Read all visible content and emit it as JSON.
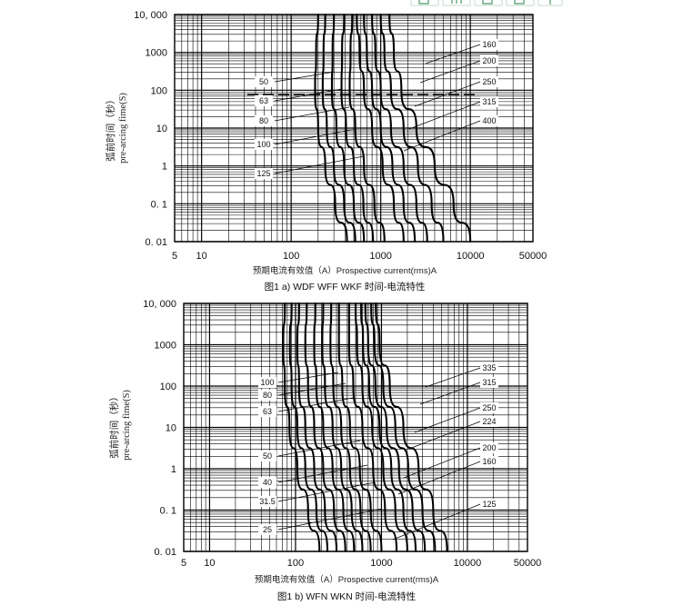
{
  "chart_data": [
    {
      "type": "line",
      "title": "图1 a) WDF WFF WKF 时间-电流特性",
      "xlabel": "预期电流有效值（A）Prospective current(rms)A",
      "ylabel_cn": "弧前时间（秒）",
      "ylabel_en": "pre-arcing fime(S)",
      "x_scale": "log",
      "y_scale": "log",
      "xlim": [
        5,
        50000
      ],
      "ylim": [
        0.01,
        10000
      ],
      "x_ticks": [
        "5",
        "10",
        "100",
        "1000",
        "10000",
        "50000"
      ],
      "y_ticks": [
        "10, 000",
        "1000",
        "100",
        "10",
        "1",
        "0. 1",
        "0. 01"
      ],
      "grid": true,
      "series": [
        {
          "name": "50",
          "points": [
            [
              200,
              10000
            ],
            [
              190,
              1000
            ],
            [
              185,
              100
            ],
            [
              200,
              10
            ],
            [
              240,
              1
            ],
            [
              310,
              0.1
            ],
            [
              420,
              0.01
            ]
          ]
        },
        {
          "name": "63",
          "points": [
            [
              240,
              10000
            ],
            [
              230,
              1000
            ],
            [
              225,
              100
            ],
            [
              250,
              10
            ],
            [
              300,
              1
            ],
            [
              390,
              0.1
            ],
            [
              520,
              0.01
            ]
          ]
        },
        {
          "name": "80",
          "points": [
            [
              300,
              10000
            ],
            [
              290,
              1000
            ],
            [
              285,
              100
            ],
            [
              320,
              10
            ],
            [
              390,
              1
            ],
            [
              500,
              0.1
            ],
            [
              650,
              0.01
            ]
          ]
        },
        {
          "name": "100",
          "points": [
            [
              390,
              10000
            ],
            [
              370,
              1000
            ],
            [
              365,
              100
            ],
            [
              410,
              10
            ],
            [
              500,
              1
            ],
            [
              640,
              0.1
            ],
            [
              820,
              0.01
            ]
          ]
        },
        {
          "name": "125",
          "points": [
            [
              480,
              10000
            ],
            [
              460,
              1000
            ],
            [
              450,
              100
            ],
            [
              520,
              10
            ],
            [
              650,
              1
            ],
            [
              850,
              0.1
            ],
            [
              1100,
              0.01
            ]
          ]
        },
        {
          "name": "160",
          "points": [
            [
              540,
              10000
            ],
            [
              580,
              1000
            ],
            [
              650,
              100
            ],
            [
              800,
              10
            ],
            [
              1050,
              1
            ],
            [
              1400,
              0.1
            ],
            [
              1800,
              0.01
            ]
          ]
        },
        {
          "name": "200",
          "points": [
            [
              650,
              10000
            ],
            [
              700,
              1000
            ],
            [
              800,
              100
            ],
            [
              1000,
              10
            ],
            [
              1350,
              1
            ],
            [
              1800,
              0.1
            ],
            [
              2400,
              0.01
            ]
          ]
        },
        {
          "name": "250",
          "points": [
            [
              800,
              10000
            ],
            [
              870,
              1000
            ],
            [
              1000,
              100
            ],
            [
              1300,
              10
            ],
            [
              1800,
              1
            ],
            [
              2500,
              0.1
            ],
            [
              3300,
              0.01
            ]
          ]
        },
        {
          "name": "315",
          "points": [
            [
              1000,
              10000
            ],
            [
              1100,
              1000
            ],
            [
              1300,
              100
            ],
            [
              1800,
              10
            ],
            [
              2600,
              1
            ],
            [
              3700,
              0.1
            ],
            [
              5000,
              0.01
            ]
          ]
        },
        {
          "name": "400",
          "points": [
            [
              1250,
              10000
            ],
            [
              1400,
              1000
            ],
            [
              1700,
              100
            ],
            [
              2500,
              10
            ],
            [
              4000,
              1
            ],
            [
              6500,
              0.1
            ],
            [
              10000,
              0.01
            ]
          ]
        }
      ],
      "rating_labels_left": [
        "50",
        "63",
        "80",
        "100",
        "125"
      ],
      "rating_labels_right": [
        "160",
        "200",
        "250",
        "315",
        "400"
      ]
    },
    {
      "type": "line",
      "title": "图1 b) WFN WKN 时间-电流特性",
      "xlabel": "预期电流有效值（A）Prospective current(rms)A",
      "ylabel_cn": "弧前时间（秒）",
      "ylabel_en": "pre-arcing fime(S)",
      "x_scale": "log",
      "y_scale": "log",
      "xlim": [
        5,
        50000
      ],
      "ylim": [
        0.01,
        10000
      ],
      "x_ticks": [
        "5",
        "10",
        "100",
        "1000",
        "10000",
        "50000"
      ],
      "y_ticks": [
        "10, 000",
        "1000",
        "100",
        "10",
        "1",
        "0. 1",
        "0. 01"
      ],
      "grid": true,
      "series": [
        {
          "name": "25",
          "points": [
            [
              75,
              10000
            ],
            [
              72,
              1000
            ],
            [
              75,
              100
            ],
            [
              85,
              10
            ],
            [
              105,
              1
            ],
            [
              140,
              0.1
            ],
            [
              190,
              0.01
            ]
          ]
        },
        {
          "name": "31.5",
          "points": [
            [
              90,
              10000
            ],
            [
              86,
              1000
            ],
            [
              90,
              100
            ],
            [
              105,
              10
            ],
            [
              130,
              1
            ],
            [
              175,
              0.1
            ],
            [
              235,
              0.01
            ]
          ]
        },
        {
          "name": "40",
          "points": [
            [
              110,
              10000
            ],
            [
              105,
              1000
            ],
            [
              110,
              100
            ],
            [
              130,
              10
            ],
            [
              165,
              1
            ],
            [
              220,
              0.1
            ],
            [
              300,
              0.01
            ]
          ]
        },
        {
          "name": "50",
          "points": [
            [
              135,
              10000
            ],
            [
              130,
              1000
            ],
            [
              140,
              100
            ],
            [
              165,
              10
            ],
            [
              210,
              1
            ],
            [
              280,
              0.1
            ],
            [
              380,
              0.01
            ]
          ]
        },
        {
          "name": "63",
          "points": [
            [
              170,
              10000
            ],
            [
              165,
              1000
            ],
            [
              175,
              100
            ],
            [
              210,
              10
            ],
            [
              270,
              1
            ],
            [
              360,
              0.1
            ],
            [
              480,
              0.01
            ]
          ]
        },
        {
          "name": "80",
          "points": [
            [
              210,
              10000
            ],
            [
              205,
              1000
            ],
            [
              220,
              100
            ],
            [
              270,
              10
            ],
            [
              340,
              1
            ],
            [
              450,
              0.1
            ],
            [
              600,
              0.01
            ]
          ]
        },
        {
          "name": "100",
          "points": [
            [
              260,
              10000
            ],
            [
              255,
              1000
            ],
            [
              275,
              100
            ],
            [
              340,
              10
            ],
            [
              430,
              1
            ],
            [
              570,
              0.1
            ],
            [
              750,
              0.01
            ]
          ]
        },
        {
          "name": "125",
          "points": [
            [
              320,
              10000
            ],
            [
              320,
              1000
            ],
            [
              350,
              100
            ],
            [
              430,
              10
            ],
            [
              560,
              1
            ],
            [
              750,
              0.1
            ],
            [
              1000,
              0.01
            ]
          ]
        },
        {
          "name": "160",
          "points": [
            [
              420,
              10000
            ],
            [
              420,
              1000
            ],
            [
              470,
              100
            ],
            [
              600,
              10
            ],
            [
              800,
              1
            ],
            [
              1100,
              0.1
            ],
            [
              1500,
              0.01
            ]
          ]
        },
        {
          "name": "200",
          "points": [
            [
              500,
              10000
            ],
            [
              520,
              1000
            ],
            [
              600,
              100
            ],
            [
              780,
              10
            ],
            [
              1050,
              1
            ],
            [
              1450,
              0.1
            ],
            [
              2000,
              0.01
            ]
          ]
        },
        {
          "name": "224",
          "points": [
            [
              580,
              10000
            ],
            [
              610,
              1000
            ],
            [
              720,
              100
            ],
            [
              950,
              10
            ],
            [
              1300,
              1
            ],
            [
              1800,
              0.1
            ],
            [
              2500,
              0.01
            ]
          ]
        },
        {
          "name": "250",
          "points": [
            [
              650,
              10000
            ],
            [
              700,
              1000
            ],
            [
              850,
              100
            ],
            [
              1150,
              10
            ],
            [
              1600,
              1
            ],
            [
              2300,
              0.1
            ],
            [
              3200,
              0.01
            ]
          ]
        },
        {
          "name": "315",
          "points": [
            [
              760,
              10000
            ],
            [
              830,
              1000
            ],
            [
              1050,
              100
            ],
            [
              1450,
              10
            ],
            [
              2050,
              1
            ],
            [
              3000,
              0.1
            ],
            [
              4200,
              0.01
            ]
          ]
        },
        {
          "name": "335",
          "points": [
            [
              860,
              10000
            ],
            [
              950,
              1000
            ],
            [
              1250,
              100
            ],
            [
              1800,
              10
            ],
            [
              2700,
              1
            ],
            [
              4000,
              0.1
            ],
            [
              5800,
              0.01
            ]
          ]
        }
      ],
      "rating_labels_left": [
        "100",
        "80",
        "63",
        "50",
        "40",
        "31.5",
        "25"
      ],
      "rating_labels_right": [
        "335",
        "315",
        "250",
        "224",
        "200",
        "160",
        "125"
      ]
    }
  ]
}
